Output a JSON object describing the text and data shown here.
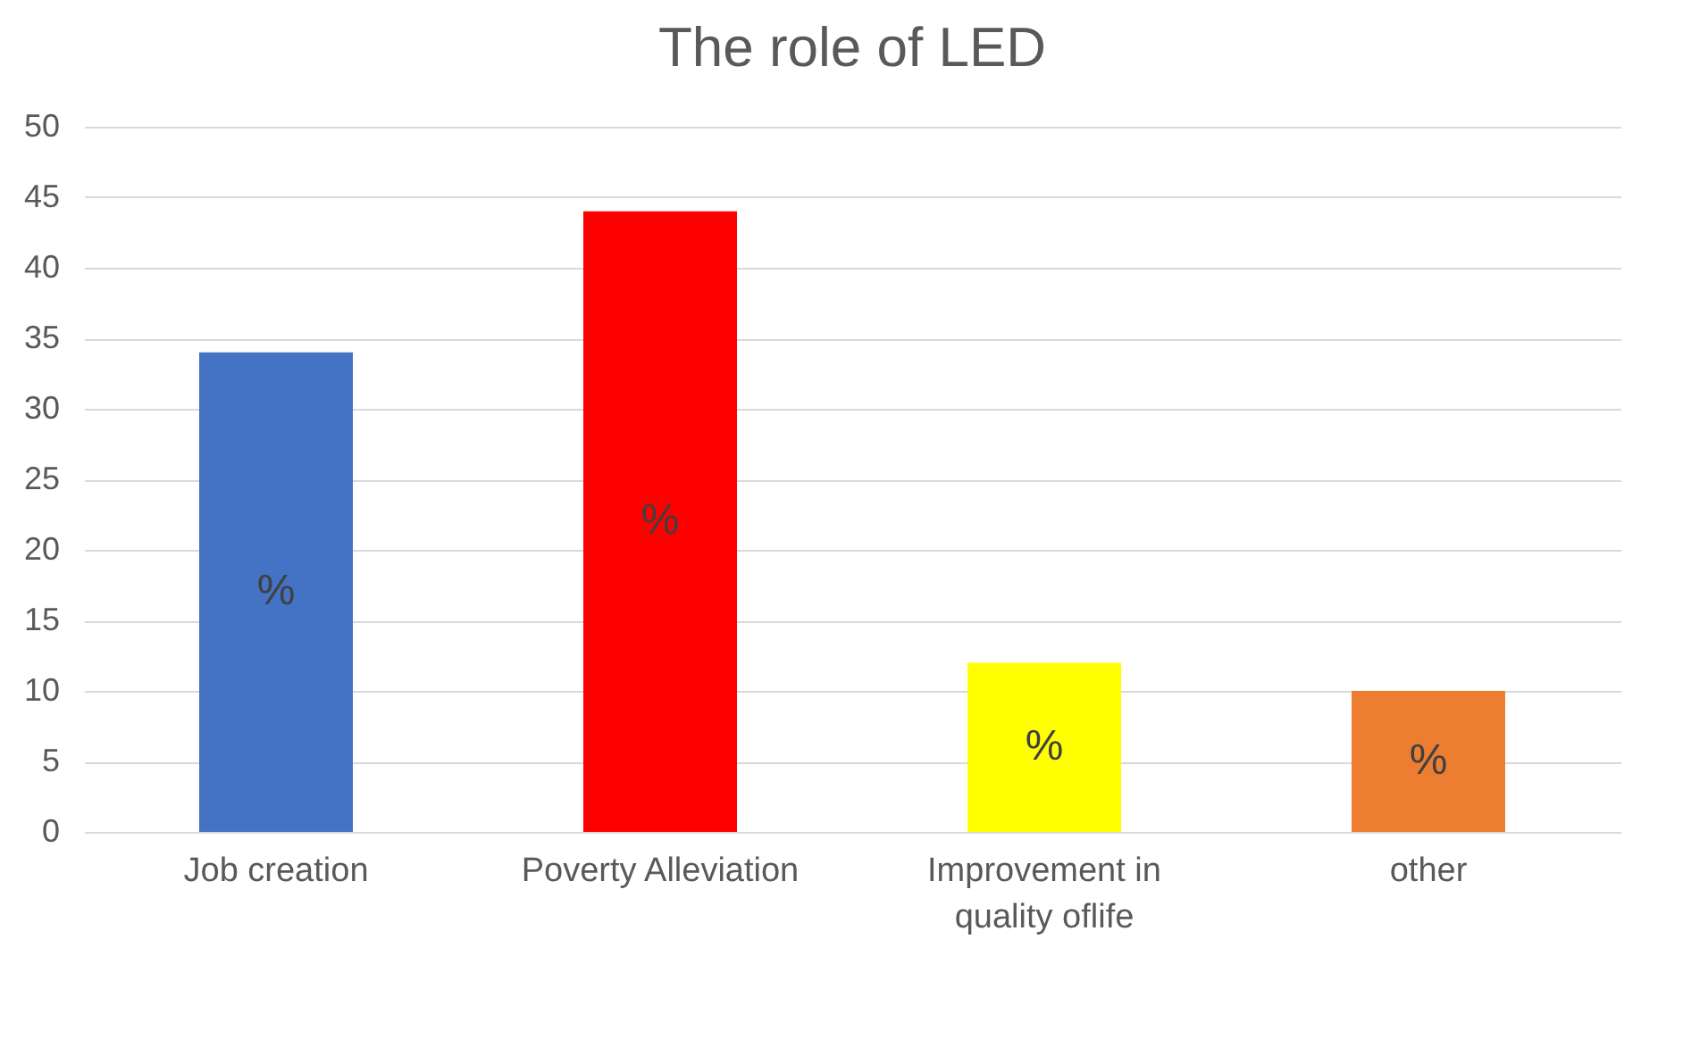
{
  "chart_data": {
    "type": "bar",
    "title": "The role of LED",
    "categories": [
      "Job creation",
      "Poverty Alleviation",
      "Improvement in quality oflife",
      "other"
    ],
    "values": [
      34,
      44,
      12,
      10
    ],
    "colors": [
      "#4472c4",
      "#ff0000",
      "#ffff00",
      "#ed7d31"
    ],
    "ylim": [
      0,
      50
    ],
    "yticks": [
      0,
      5,
      10,
      15,
      20,
      25,
      30,
      35,
      40,
      45,
      50
    ],
    "grid": "y",
    "value_labels": [
      "%",
      "%",
      "%",
      "%"
    ]
  }
}
